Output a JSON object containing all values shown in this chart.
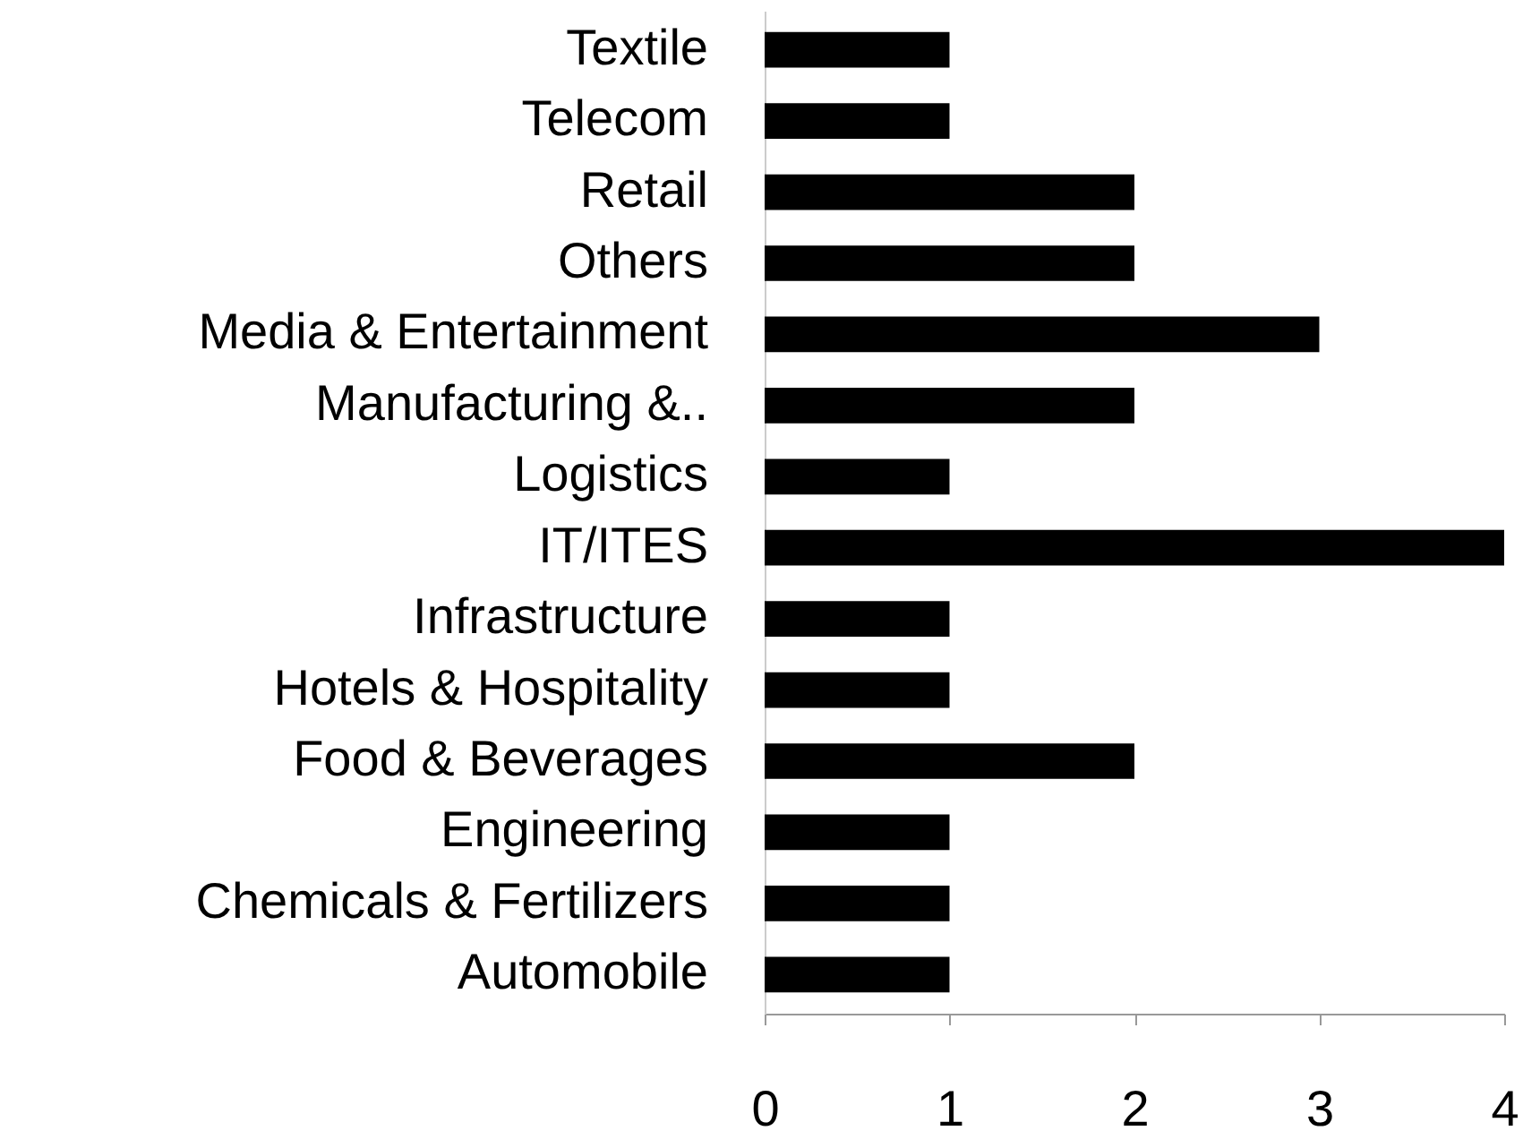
{
  "chart_data": {
    "type": "bar",
    "orientation": "horizontal",
    "categories": [
      "Textile",
      "Telecom",
      "Retail",
      "Others",
      "Media & Entertainment",
      "Manufacturing &..",
      "Logistics",
      "IT/ITES",
      "Infrastructure",
      "Hotels & Hospitality",
      "Food & Beverages",
      "Engineering",
      "Chemicals & Fertilizers",
      "Automobile"
    ],
    "values": [
      1,
      1,
      2,
      2,
      3,
      2,
      1,
      4,
      1,
      1,
      2,
      1,
      1,
      1
    ],
    "color": "#000000",
    "xlim": [
      0,
      4
    ],
    "xticks": [
      0,
      1,
      2,
      3,
      4
    ],
    "grid": false
  }
}
